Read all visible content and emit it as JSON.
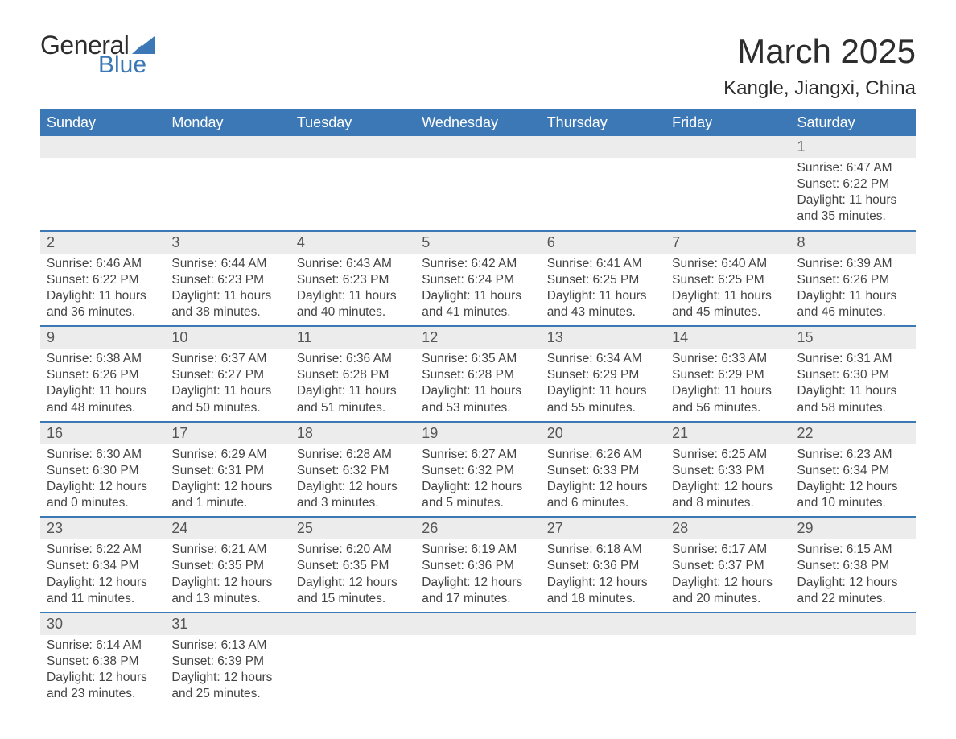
{
  "logo": {
    "top": "General",
    "bottom": "Blue",
    "sail_color": "#3b78b5",
    "text_color": "#2d2d2d"
  },
  "title": "March 2025",
  "location": "Kangle, Jiangxi, China",
  "colors": {
    "header_bg": "#3b78b5",
    "header_text": "#ffffff",
    "daynum_bg": "#ececec",
    "row_border": "#3b78b5",
    "body_text": "#444444",
    "background": "#ffffff"
  },
  "style": {
    "title_fontsize": 42,
    "location_fontsize": 24,
    "header_fontsize": 18,
    "daynum_fontsize": 18,
    "detail_fontsize": 15.5
  },
  "days_of_week": [
    "Sunday",
    "Monday",
    "Tuesday",
    "Wednesday",
    "Thursday",
    "Friday",
    "Saturday"
  ],
  "weeks": [
    [
      null,
      null,
      null,
      null,
      null,
      null,
      {
        "n": "1",
        "sr": "Sunrise: 6:47 AM",
        "ss": "Sunset: 6:22 PM",
        "d1": "Daylight: 11 hours",
        "d2": "and 35 minutes."
      }
    ],
    [
      {
        "n": "2",
        "sr": "Sunrise: 6:46 AM",
        "ss": "Sunset: 6:22 PM",
        "d1": "Daylight: 11 hours",
        "d2": "and 36 minutes."
      },
      {
        "n": "3",
        "sr": "Sunrise: 6:44 AM",
        "ss": "Sunset: 6:23 PM",
        "d1": "Daylight: 11 hours",
        "d2": "and 38 minutes."
      },
      {
        "n": "4",
        "sr": "Sunrise: 6:43 AM",
        "ss": "Sunset: 6:23 PM",
        "d1": "Daylight: 11 hours",
        "d2": "and 40 minutes."
      },
      {
        "n": "5",
        "sr": "Sunrise: 6:42 AM",
        "ss": "Sunset: 6:24 PM",
        "d1": "Daylight: 11 hours",
        "d2": "and 41 minutes."
      },
      {
        "n": "6",
        "sr": "Sunrise: 6:41 AM",
        "ss": "Sunset: 6:25 PM",
        "d1": "Daylight: 11 hours",
        "d2": "and 43 minutes."
      },
      {
        "n": "7",
        "sr": "Sunrise: 6:40 AM",
        "ss": "Sunset: 6:25 PM",
        "d1": "Daylight: 11 hours",
        "d2": "and 45 minutes."
      },
      {
        "n": "8",
        "sr": "Sunrise: 6:39 AM",
        "ss": "Sunset: 6:26 PM",
        "d1": "Daylight: 11 hours",
        "d2": "and 46 minutes."
      }
    ],
    [
      {
        "n": "9",
        "sr": "Sunrise: 6:38 AM",
        "ss": "Sunset: 6:26 PM",
        "d1": "Daylight: 11 hours",
        "d2": "and 48 minutes."
      },
      {
        "n": "10",
        "sr": "Sunrise: 6:37 AM",
        "ss": "Sunset: 6:27 PM",
        "d1": "Daylight: 11 hours",
        "d2": "and 50 minutes."
      },
      {
        "n": "11",
        "sr": "Sunrise: 6:36 AM",
        "ss": "Sunset: 6:28 PM",
        "d1": "Daylight: 11 hours",
        "d2": "and 51 minutes."
      },
      {
        "n": "12",
        "sr": "Sunrise: 6:35 AM",
        "ss": "Sunset: 6:28 PM",
        "d1": "Daylight: 11 hours",
        "d2": "and 53 minutes."
      },
      {
        "n": "13",
        "sr": "Sunrise: 6:34 AM",
        "ss": "Sunset: 6:29 PM",
        "d1": "Daylight: 11 hours",
        "d2": "and 55 minutes."
      },
      {
        "n": "14",
        "sr": "Sunrise: 6:33 AM",
        "ss": "Sunset: 6:29 PM",
        "d1": "Daylight: 11 hours",
        "d2": "and 56 minutes."
      },
      {
        "n": "15",
        "sr": "Sunrise: 6:31 AM",
        "ss": "Sunset: 6:30 PM",
        "d1": "Daylight: 11 hours",
        "d2": "and 58 minutes."
      }
    ],
    [
      {
        "n": "16",
        "sr": "Sunrise: 6:30 AM",
        "ss": "Sunset: 6:30 PM",
        "d1": "Daylight: 12 hours",
        "d2": "and 0 minutes."
      },
      {
        "n": "17",
        "sr": "Sunrise: 6:29 AM",
        "ss": "Sunset: 6:31 PM",
        "d1": "Daylight: 12 hours",
        "d2": "and 1 minute."
      },
      {
        "n": "18",
        "sr": "Sunrise: 6:28 AM",
        "ss": "Sunset: 6:32 PM",
        "d1": "Daylight: 12 hours",
        "d2": "and 3 minutes."
      },
      {
        "n": "19",
        "sr": "Sunrise: 6:27 AM",
        "ss": "Sunset: 6:32 PM",
        "d1": "Daylight: 12 hours",
        "d2": "and 5 minutes."
      },
      {
        "n": "20",
        "sr": "Sunrise: 6:26 AM",
        "ss": "Sunset: 6:33 PM",
        "d1": "Daylight: 12 hours",
        "d2": "and 6 minutes."
      },
      {
        "n": "21",
        "sr": "Sunrise: 6:25 AM",
        "ss": "Sunset: 6:33 PM",
        "d1": "Daylight: 12 hours",
        "d2": "and 8 minutes."
      },
      {
        "n": "22",
        "sr": "Sunrise: 6:23 AM",
        "ss": "Sunset: 6:34 PM",
        "d1": "Daylight: 12 hours",
        "d2": "and 10 minutes."
      }
    ],
    [
      {
        "n": "23",
        "sr": "Sunrise: 6:22 AM",
        "ss": "Sunset: 6:34 PM",
        "d1": "Daylight: 12 hours",
        "d2": "and 11 minutes."
      },
      {
        "n": "24",
        "sr": "Sunrise: 6:21 AM",
        "ss": "Sunset: 6:35 PM",
        "d1": "Daylight: 12 hours",
        "d2": "and 13 minutes."
      },
      {
        "n": "25",
        "sr": "Sunrise: 6:20 AM",
        "ss": "Sunset: 6:35 PM",
        "d1": "Daylight: 12 hours",
        "d2": "and 15 minutes."
      },
      {
        "n": "26",
        "sr": "Sunrise: 6:19 AM",
        "ss": "Sunset: 6:36 PM",
        "d1": "Daylight: 12 hours",
        "d2": "and 17 minutes."
      },
      {
        "n": "27",
        "sr": "Sunrise: 6:18 AM",
        "ss": "Sunset: 6:36 PM",
        "d1": "Daylight: 12 hours",
        "d2": "and 18 minutes."
      },
      {
        "n": "28",
        "sr": "Sunrise: 6:17 AM",
        "ss": "Sunset: 6:37 PM",
        "d1": "Daylight: 12 hours",
        "d2": "and 20 minutes."
      },
      {
        "n": "29",
        "sr": "Sunrise: 6:15 AM",
        "ss": "Sunset: 6:38 PM",
        "d1": "Daylight: 12 hours",
        "d2": "and 22 minutes."
      }
    ],
    [
      {
        "n": "30",
        "sr": "Sunrise: 6:14 AM",
        "ss": "Sunset: 6:38 PM",
        "d1": "Daylight: 12 hours",
        "d2": "and 23 minutes."
      },
      {
        "n": "31",
        "sr": "Sunrise: 6:13 AM",
        "ss": "Sunset: 6:39 PM",
        "d1": "Daylight: 12 hours",
        "d2": "and 25 minutes."
      },
      null,
      null,
      null,
      null,
      null
    ]
  ]
}
